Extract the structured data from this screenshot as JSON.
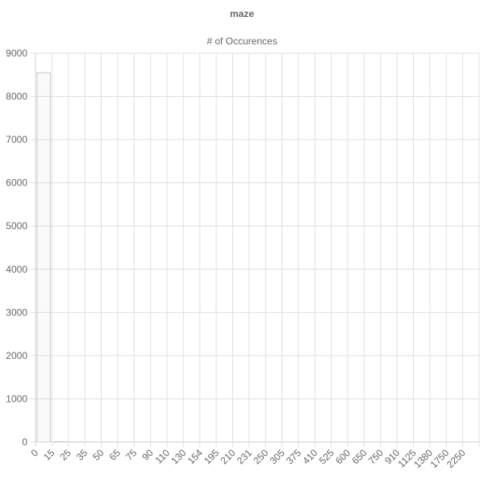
{
  "chart_data": {
    "type": "bar",
    "title": "maze",
    "xlabel": "",
    "ylabel": "",
    "ylim": [
      0,
      9000
    ],
    "yticks": [
      "0",
      "1000",
      "2000",
      "3000",
      "4000",
      "5000",
      "6000",
      "7000",
      "8000",
      "9000"
    ],
    "categories": [
      "0",
      "15",
      "25",
      "35",
      "50",
      "65",
      "75",
      "90",
      "110",
      "130",
      "154",
      "195",
      "210",
      "231",
      "250",
      "305",
      "375",
      "410",
      "525",
      "600",
      "650",
      "750",
      "910",
      "1125",
      "1380",
      "1750",
      "2250"
    ],
    "series": [
      {
        "name": "# of Occurences",
        "color": "#c8c8c8",
        "values": [
          8550,
          10,
          5,
          3,
          3,
          2,
          2,
          2,
          1,
          1,
          1,
          1,
          1,
          1,
          1,
          1,
          1,
          1,
          1,
          1,
          1,
          1,
          1,
          1,
          1,
          1,
          1
        ]
      }
    ],
    "legend": "top",
    "grid": true
  }
}
